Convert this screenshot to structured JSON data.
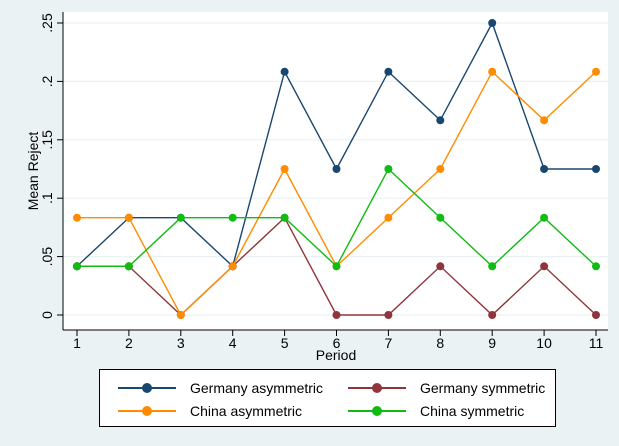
{
  "chart_data": {
    "type": "line",
    "xlabel": "Period",
    "ylabel": "Mean Reject",
    "x": [
      1,
      2,
      3,
      4,
      5,
      6,
      7,
      8,
      9,
      10,
      11
    ],
    "x_ticks": [
      "1",
      "2",
      "3",
      "4",
      "5",
      "6",
      "7",
      "8",
      "9",
      "10",
      "11"
    ],
    "y_ticks": [
      {
        "value": 0,
        "label": "0"
      },
      {
        "value": 0.05,
        "label": ".05"
      },
      {
        "value": 0.1,
        "label": ".1"
      },
      {
        "value": 0.15,
        "label": ".15"
      },
      {
        "value": 0.2,
        "label": ".2"
      },
      {
        "value": 0.25,
        "label": ".25"
      }
    ],
    "xlim": [
      1,
      11
    ],
    "ylim": [
      0,
      0.25
    ],
    "grid": "horizontal",
    "legend_position": "bottom",
    "series": [
      {
        "name": "Germany asymmetric",
        "color": "#1a476f",
        "values": [
          0.0417,
          0.0833,
          0.0833,
          0.0417,
          0.2083,
          0.125,
          0.2083,
          0.1667,
          0.25,
          0.125,
          0.125
        ]
      },
      {
        "name": "Germany symmetric",
        "color": "#90353b",
        "values": [
          0.0417,
          0.0417,
          0,
          0.0417,
          0.0833,
          0,
          0,
          0.0417,
          0,
          0.0417,
          0
        ]
      },
      {
        "name": "China asymmetric",
        "color": "#ff8c00",
        "values": [
          0.0833,
          0.0833,
          0,
          0.0417,
          0.125,
          0.0417,
          0.0833,
          0.125,
          0.2083,
          0.1667,
          0.2083
        ]
      },
      {
        "name": "China symmetric",
        "color": "#11bb11",
        "values": [
          0.0417,
          0.0417,
          0.0833,
          0.0833,
          0.0833,
          0.0417,
          0.125,
          0.0833,
          0.0417,
          0.0833,
          0.0417
        ]
      }
    ]
  }
}
